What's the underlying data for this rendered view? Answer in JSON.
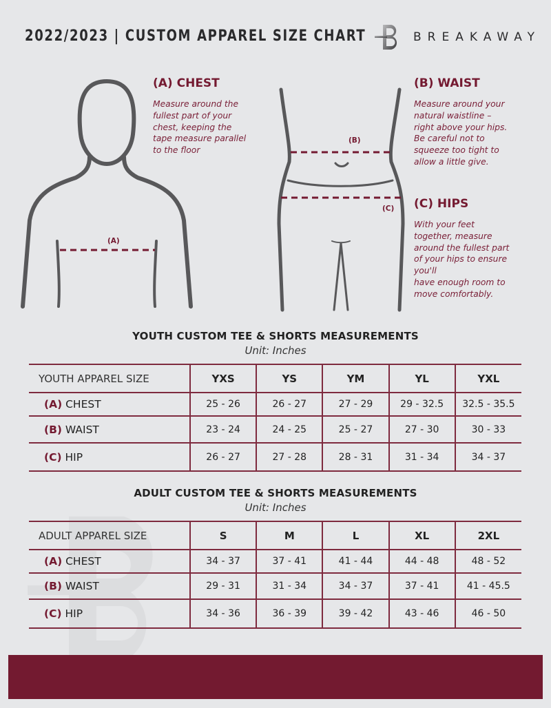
{
  "header": {
    "title": "2022/2023  |  CUSTOM APPAREL SIZE CHART",
    "brand": "BREAKAWAY",
    "logo_letter": "B"
  },
  "colors": {
    "accent": "#731a30",
    "background": "#e6e7e9",
    "figure": "#5a5a5c"
  },
  "guide": {
    "chest": {
      "heading": "(A) CHEST",
      "text": "Measure around the\nfullest part of your\nchest, keeping the\ntape measure parallel\nto the floor",
      "figure_label": "(A)"
    },
    "waist": {
      "heading": "(B) WAIST",
      "text": "Measure around your\nnatural waistline –\nright above your hips.\nBe careful not to\nsqueeze too tight to\nallow a little give.",
      "figure_label": "(B)"
    },
    "hips": {
      "heading": "(C) HIPS",
      "text": "With your feet\ntogether, measure\naround the fullest part\nof your hips to ensure\nyou'll\nhave enough room to\nmove comfortably.",
      "figure_label": "(C)"
    }
  },
  "youth": {
    "title": "YOUTH CUSTOM TEE & SHORTS MEASUREMENTS",
    "unit": "Unit: Inches",
    "corner": "YOUTH APPAREL SIZE",
    "sizes": [
      "YXS",
      "YS",
      "YM",
      "YL",
      "YXL"
    ],
    "rows": [
      {
        "letter": "(A)",
        "label": "CHEST",
        "values": [
          "25 - 26",
          "26 - 27",
          "27 - 29",
          "29 - 32.5",
          "32.5 - 35.5"
        ]
      },
      {
        "letter": "(B)",
        "label": "WAIST",
        "values": [
          "23 - 24",
          "24 - 25",
          "25 - 27",
          "27 - 30",
          "30 - 33"
        ]
      },
      {
        "letter": "(C)",
        "label": "HIP",
        "values": [
          "26 - 27",
          "27 - 28",
          "28 - 31",
          "31 - 34",
          "34 - 37"
        ]
      }
    ]
  },
  "adult": {
    "title": "ADULT CUSTOM TEE & SHORTS MEASUREMENTS",
    "unit": "Unit: Inches",
    "corner": "ADULT APPAREL SIZE",
    "sizes": [
      "S",
      "M",
      "L",
      "XL",
      "2XL"
    ],
    "rows": [
      {
        "letter": "(A)",
        "label": "CHEST",
        "values": [
          "34 - 37",
          "37 - 41",
          "41 - 44",
          "44 - 48",
          "48 - 52"
        ]
      },
      {
        "letter": "(B)",
        "label": "WAIST",
        "values": [
          "29 - 31",
          "31 - 34",
          "34 - 37",
          "37 - 41",
          "41 - 45.5"
        ]
      },
      {
        "letter": "(C)",
        "label": "HIP",
        "values": [
          "34 - 36",
          "36 - 39",
          "39 - 42",
          "43 - 46",
          "46 - 50"
        ]
      }
    ]
  }
}
